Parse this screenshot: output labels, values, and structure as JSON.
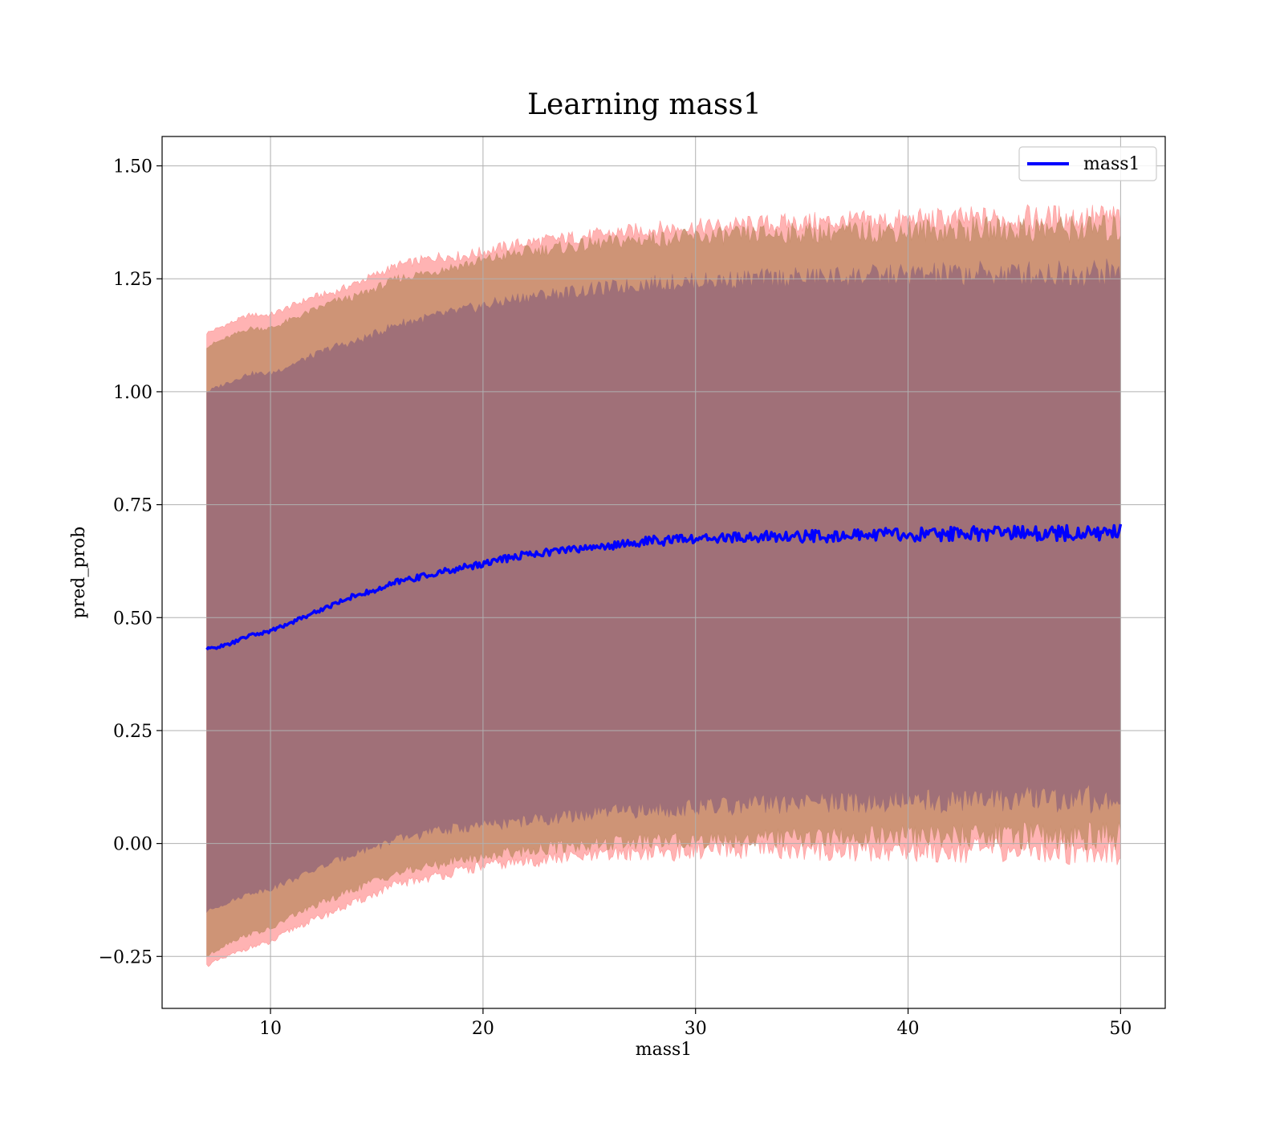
{
  "chart_data": {
    "type": "line",
    "title": "Learning mass1",
    "xlabel": "mass1",
    "ylabel": "pred_prob",
    "xlim": [
      4.9,
      52.1
    ],
    "ylim": [
      -0.365,
      1.565
    ],
    "x_ticks": [
      10,
      20,
      30,
      40,
      50
    ],
    "x_tick_labels": [
      "10",
      "20",
      "30",
      "40",
      "50"
    ],
    "y_ticks": [
      -0.25,
      0.0,
      0.25,
      0.5,
      0.75,
      1.0,
      1.25,
      1.5
    ],
    "y_tick_labels": [
      "−0.25",
      "0.00",
      "0.25",
      "0.50",
      "0.75",
      "1.00",
      "1.25",
      "1.50"
    ],
    "grid": true,
    "legend_position": "top-right",
    "colors": {
      "line": "#0000ff",
      "outer_band": "#ff9999",
      "middle_band": "#c9906f",
      "inner_band": "#a07078",
      "grid": "#b0b0b0"
    },
    "series": [
      {
        "name": "mass1",
        "x": [
          7,
          8,
          9,
          10,
          11,
          12,
          13,
          14,
          15,
          16,
          17,
          18,
          19,
          20,
          21,
          22,
          23,
          24,
          25,
          26,
          27,
          28,
          29,
          30,
          31,
          32,
          33,
          34,
          35,
          36,
          37,
          38,
          39,
          40,
          41,
          42,
          43,
          44,
          45,
          46,
          47,
          48,
          49,
          50
        ],
        "y": [
          0.43,
          0.44,
          0.46,
          0.47,
          0.49,
          0.51,
          0.53,
          0.55,
          0.56,
          0.58,
          0.59,
          0.6,
          0.61,
          0.62,
          0.63,
          0.64,
          0.645,
          0.65,
          0.655,
          0.66,
          0.665,
          0.67,
          0.672,
          0.674,
          0.676,
          0.677,
          0.678,
          0.679,
          0.68,
          0.681,
          0.682,
          0.683,
          0.684,
          0.684,
          0.685,
          0.685,
          0.686,
          0.686,
          0.686,
          0.687,
          0.687,
          0.687,
          0.688,
          0.688
        ]
      }
    ],
    "bands": [
      {
        "role": "outer",
        "x": [
          7,
          8,
          9,
          10,
          11,
          12,
          13,
          14,
          15,
          16,
          17,
          18,
          19,
          20,
          21,
          22,
          23,
          24,
          25,
          26,
          27,
          28,
          29,
          30,
          31,
          32,
          33,
          34,
          35,
          36,
          37,
          38,
          39,
          40,
          41,
          42,
          43,
          44,
          45,
          46,
          47,
          48,
          49,
          50
        ],
        "lower": [
          -0.27,
          -0.25,
          -0.23,
          -0.22,
          -0.19,
          -0.17,
          -0.15,
          -0.13,
          -0.11,
          -0.09,
          -0.08,
          -0.07,
          -0.06,
          -0.05,
          -0.045,
          -0.04,
          -0.035,
          -0.03,
          -0.03,
          -0.025,
          -0.02,
          -0.02,
          -0.02,
          -0.015,
          -0.015,
          -0.015,
          -0.015,
          -0.015,
          -0.015,
          -0.015,
          -0.015,
          -0.015,
          -0.015,
          -0.015,
          -0.015,
          -0.015,
          -0.015,
          -0.015,
          -0.015,
          -0.015,
          -0.015,
          -0.015,
          -0.015,
          -0.015
        ],
        "upper": [
          1.13,
          1.15,
          1.17,
          1.17,
          1.19,
          1.21,
          1.22,
          1.24,
          1.26,
          1.28,
          1.29,
          1.3,
          1.3,
          1.31,
          1.32,
          1.33,
          1.335,
          1.34,
          1.345,
          1.35,
          1.355,
          1.36,
          1.362,
          1.364,
          1.366,
          1.368,
          1.37,
          1.372,
          1.374,
          1.375,
          1.376,
          1.377,
          1.378,
          1.379,
          1.38,
          1.381,
          1.382,
          1.382,
          1.383,
          1.383,
          1.384,
          1.384,
          1.385,
          1.385
        ]
      },
      {
        "role": "middle",
        "x": [
          7,
          8,
          9,
          10,
          11,
          12,
          13,
          14,
          15,
          16,
          17,
          18,
          19,
          20,
          21,
          22,
          23,
          24,
          25,
          26,
          27,
          28,
          29,
          30,
          31,
          32,
          33,
          34,
          35,
          36,
          37,
          38,
          39,
          40,
          41,
          42,
          43,
          44,
          45,
          46,
          47,
          48,
          49,
          50
        ],
        "lower": [
          -0.25,
          -0.22,
          -0.2,
          -0.19,
          -0.16,
          -0.14,
          -0.12,
          -0.1,
          -0.08,
          -0.065,
          -0.055,
          -0.045,
          -0.035,
          -0.03,
          -0.02,
          -0.015,
          -0.01,
          -0.005,
          -0.002,
          0.0,
          0.002,
          0.004,
          0.006,
          0.008,
          0.009,
          0.01,
          0.011,
          0.012,
          0.013,
          0.014,
          0.014,
          0.015,
          0.015,
          0.016,
          0.016,
          0.017,
          0.017,
          0.017,
          0.018,
          0.018,
          0.018,
          0.018,
          0.019,
          0.019
        ],
        "upper": [
          1.1,
          1.12,
          1.14,
          1.14,
          1.16,
          1.18,
          1.2,
          1.21,
          1.23,
          1.25,
          1.26,
          1.27,
          1.28,
          1.29,
          1.3,
          1.31,
          1.315,
          1.32,
          1.325,
          1.33,
          1.335,
          1.338,
          1.34,
          1.342,
          1.344,
          1.346,
          1.348,
          1.35,
          1.351,
          1.352,
          1.353,
          1.354,
          1.355,
          1.356,
          1.357,
          1.357,
          1.358,
          1.358,
          1.359,
          1.359,
          1.36,
          1.36,
          1.36,
          1.36
        ]
      },
      {
        "role": "inner",
        "x": [
          7,
          8,
          9,
          10,
          11,
          12,
          13,
          14,
          15,
          16,
          17,
          18,
          19,
          20,
          21,
          22,
          23,
          24,
          25,
          26,
          27,
          28,
          29,
          30,
          31,
          32,
          33,
          34,
          35,
          36,
          37,
          38,
          39,
          40,
          41,
          42,
          43,
          44,
          45,
          46,
          47,
          48,
          49,
          50
        ],
        "lower": [
          -0.15,
          -0.13,
          -0.11,
          -0.1,
          -0.08,
          -0.06,
          -0.04,
          -0.02,
          -0.005,
          0.01,
          0.02,
          0.03,
          0.035,
          0.04,
          0.045,
          0.05,
          0.055,
          0.06,
          0.065,
          0.07,
          0.072,
          0.075,
          0.078,
          0.08,
          0.082,
          0.084,
          0.086,
          0.088,
          0.09,
          0.091,
          0.092,
          0.093,
          0.094,
          0.095,
          0.096,
          0.096,
          0.097,
          0.097,
          0.098,
          0.098,
          0.099,
          0.099,
          0.1,
          0.1
        ],
        "upper": [
          1.0,
          1.02,
          1.04,
          1.04,
          1.06,
          1.08,
          1.1,
          1.11,
          1.13,
          1.15,
          1.16,
          1.17,
          1.18,
          1.19,
          1.2,
          1.21,
          1.215,
          1.22,
          1.225,
          1.23,
          1.235,
          1.24,
          1.242,
          1.244,
          1.246,
          1.248,
          1.25,
          1.252,
          1.253,
          1.254,
          1.255,
          1.256,
          1.257,
          1.258,
          1.259,
          1.26,
          1.26,
          1.261,
          1.261,
          1.262,
          1.262,
          1.263,
          1.263,
          1.263
        ]
      }
    ]
  }
}
